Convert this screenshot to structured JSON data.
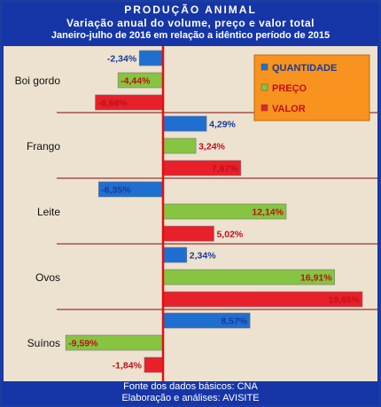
{
  "header": {
    "title": "PRODUÇÃO ANIMAL",
    "subtitle": "Variação anual do volume, preço e valor total",
    "period": "Janeiro-julho de 2016 em relação a idêntico período de 2015"
  },
  "footer": {
    "source": "Fonte dos dados básicos: CNA",
    "credit": "Elaboração e análises: AVISITE"
  },
  "colors": {
    "quantidade": "#1f6fd0",
    "preco": "#86c441",
    "valor": "#e8202a",
    "legend_bg": "#f7931e",
    "axis": "#e01010",
    "label_blue": "#1a3a9a",
    "label_red": "#c0101a"
  },
  "chart_data": {
    "type": "bar",
    "orientation": "horizontal",
    "categories": [
      "Boi gordo",
      "Frango",
      "Leite",
      "Ovos",
      "Suínos"
    ],
    "series": [
      {
        "name": "QUANTIDADE",
        "values": [
          -2.34,
          4.29,
          -6.35,
          2.34,
          8.57
        ],
        "labels": [
          "-2,34%",
          "4,29%",
          "-6,35%",
          "2,34%",
          "8,57%"
        ]
      },
      {
        "name": "PREÇO",
        "values": [
          -4.44,
          3.24,
          12.14,
          16.91,
          -9.59
        ],
        "labels": [
          "-4,44%",
          "3,24%",
          "12,14%",
          "16,91%",
          "-9,59%"
        ]
      },
      {
        "name": "VALOR",
        "values": [
          -6.68,
          7.67,
          5.02,
          19.65,
          -1.84
        ],
        "labels": [
          "-6,68%",
          "7,67%",
          "5,02%",
          "19,65%",
          "-1,84%"
        ]
      }
    ],
    "xlim": [
      -12,
      20
    ],
    "legend_position": "top-right",
    "grid": false
  }
}
